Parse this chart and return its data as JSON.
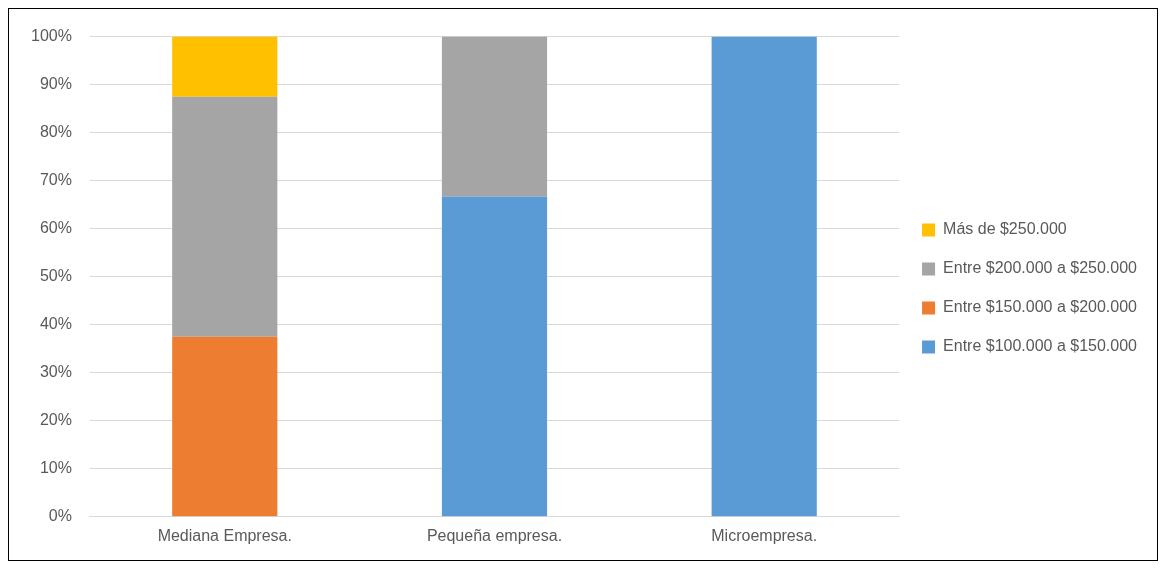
{
  "chart_data": {
    "type": "bar",
    "stacked": true,
    "categories": [
      "Mediana Empresa.",
      "Pequeña empresa.",
      "Microempresa."
    ],
    "series": [
      {
        "name": "Entre $100.000 a $150.000",
        "color": "#5b9bd5",
        "values": [
          0,
          66.7,
          100
        ]
      },
      {
        "name": "Entre $150.000 a $200.000",
        "color": "#ed7d31",
        "values": [
          37.5,
          0,
          0
        ]
      },
      {
        "name": "Entre $200.000 a $250.000",
        "color": "#a5a5a5",
        "values": [
          50,
          33.3,
          0
        ]
      },
      {
        "name": "Más de $250.000",
        "color": "#ffc000",
        "values": [
          12.5,
          0,
          0
        ]
      }
    ],
    "ylim": [
      0,
      100
    ],
    "yticks": [
      {
        "value": 0,
        "label": "0%"
      },
      {
        "value": 10,
        "label": "10%"
      },
      {
        "value": 20,
        "label": "20%"
      },
      {
        "value": 30,
        "label": "30%"
      },
      {
        "value": 40,
        "label": "40%"
      },
      {
        "value": 50,
        "label": "50%"
      },
      {
        "value": 60,
        "label": "60%"
      },
      {
        "value": 70,
        "label": "70%"
      },
      {
        "value": 80,
        "label": "80%"
      },
      {
        "value": 90,
        "label": "90%"
      },
      {
        "value": 100,
        "label": "100%"
      }
    ],
    "grid": "y",
    "legend": "right"
  }
}
